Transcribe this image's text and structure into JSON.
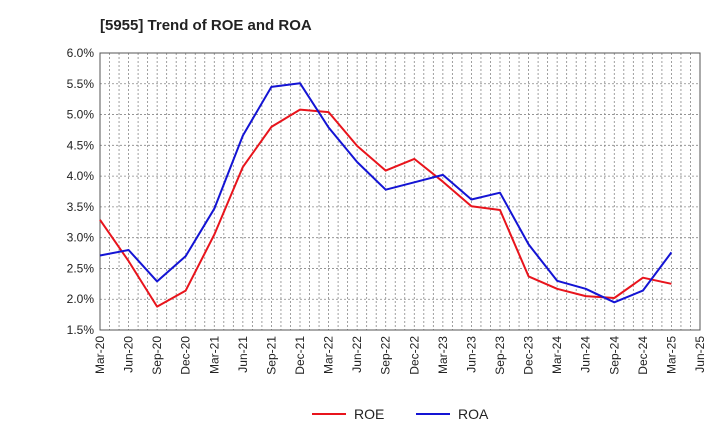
{
  "chart_data": {
    "type": "line",
    "title": "[5955]  Trend of ROE and ROA",
    "xlabel": "",
    "ylabel": "",
    "ylim": [
      1.5,
      6.0
    ],
    "y_ticks": [
      "6.0%",
      "5.5%",
      "5.0%",
      "4.5%",
      "4.0%",
      "3.5%",
      "3.0%",
      "2.5%",
      "2.0%",
      "1.5%"
    ],
    "y_tick_values": [
      6.0,
      5.5,
      5.0,
      4.5,
      4.0,
      3.5,
      3.0,
      2.5,
      2.0,
      1.5
    ],
    "categories": [
      "Mar-20",
      "Jun-20",
      "Sep-20",
      "Dec-20",
      "Mar-21",
      "Jun-21",
      "Sep-21",
      "Dec-21",
      "Mar-22",
      "Jun-22",
      "Sep-22",
      "Dec-22",
      "Mar-23",
      "Jun-23",
      "Sep-23",
      "Dec-23",
      "Mar-24",
      "Jun-24",
      "Sep-24",
      "Dec-24",
      "Mar-25",
      "Jun-25"
    ],
    "grid": true,
    "legend_position": "bottom",
    "series": [
      {
        "name": "ROE",
        "color": "#e8141c",
        "values": [
          3.29,
          2.62,
          1.88,
          2.14,
          3.05,
          4.15,
          4.8,
          5.08,
          5.04,
          4.49,
          4.09,
          4.28,
          3.91,
          3.51,
          3.45,
          2.37,
          2.17,
          2.05,
          2.02,
          2.35,
          2.25,
          null
        ]
      },
      {
        "name": "ROA",
        "color": "#1414d4",
        "values": [
          2.71,
          2.8,
          2.29,
          2.7,
          3.47,
          4.66,
          5.45,
          5.51,
          4.79,
          4.23,
          3.78,
          3.9,
          4.02,
          3.62,
          3.73,
          2.89,
          2.3,
          2.17,
          1.95,
          2.14,
          2.76,
          null
        ]
      }
    ]
  }
}
